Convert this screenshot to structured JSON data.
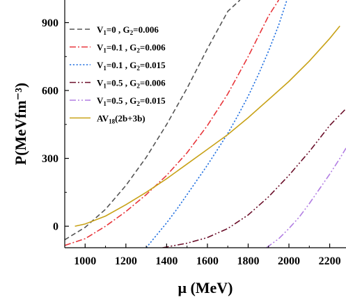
{
  "chart_data": {
    "type": "line",
    "xlabel": "μ (MeV)",
    "ylabel": "P(MeVfm⁻³)",
    "xlim": [
      900,
      2280
    ],
    "ylim": [
      -95,
      1000
    ],
    "xticks": [
      1000,
      1200,
      1400,
      1600,
      1800,
      2000,
      2200
    ],
    "yticks": [
      0,
      300,
      600,
      900
    ],
    "grid": false,
    "legend_position": "top-left",
    "series": [
      {
        "name": "V1=0 , G2=0.006",
        "legend": {
          "base": "V",
          "sub1": "1",
          "mid": "=0 , G",
          "sub2": "2",
          "tail": "=0.006"
        },
        "color": "#555555",
        "dash": "dashed",
        "x": [
          900,
          1000,
          1100,
          1200,
          1300,
          1400,
          1500,
          1600,
          1700,
          1760
        ],
        "y": [
          -60,
          -5,
          75,
          180,
          305,
          450,
          610,
          785,
          950,
          1000
        ]
      },
      {
        "name": "V1=0.1 , G2=0.006",
        "legend": {
          "base": "V",
          "sub1": "1",
          "mid": "=0.1 , G",
          "sub2": "2",
          "tail": "=0.006"
        },
        "color": "#e8353a",
        "dash": "dash-dot",
        "x": [
          900,
          1000,
          1100,
          1200,
          1300,
          1400,
          1500,
          1600,
          1700,
          1800,
          1900,
          1950
        ],
        "y": [
          -85,
          -55,
          0,
          65,
          140,
          225,
          325,
          445,
          585,
          750,
          930,
          1000
        ]
      },
      {
        "name": "V1=0.1 , G2=0.015",
        "legend": {
          "base": "V",
          "sub1": "1",
          "mid": "=0.1 , G",
          "sub2": "2",
          "tail": "=0.015"
        },
        "color": "#1f6fe0",
        "dash": "dotted",
        "x": [
          1300,
          1350,
          1400,
          1450,
          1500,
          1550,
          1600,
          1650,
          1700,
          1750,
          1800,
          1850,
          1900,
          1950,
          1990
        ],
        "y": [
          -95,
          -40,
          15,
          75,
          140,
          205,
          270,
          340,
          410,
          490,
          575,
          670,
          775,
          890,
          1000
        ]
      },
      {
        "name": "V1=0.5 , G2=0.006",
        "legend": {
          "base": "V",
          "sub1": "1",
          "mid": "=0.5 , G",
          "sub2": "2",
          "tail": "=0.006"
        },
        "color": "#6b0f2a",
        "dash": "dash-dot-dot",
        "x": [
          1380,
          1500,
          1600,
          1700,
          1800,
          1900,
          2000,
          2100,
          2200,
          2280
        ],
        "y": [
          -95,
          -75,
          -50,
          -10,
          50,
          130,
          225,
          330,
          445,
          520
        ]
      },
      {
        "name": "V1=0.5 , G2=0.015",
        "legend": {
          "base": "V",
          "sub1": "1",
          "mid": "=0.5 , G",
          "sub2": "2",
          "tail": "=0.015"
        },
        "color": "#b27ee3",
        "dash": "dash-dot-dot",
        "x": [
          1890,
          1950,
          2000,
          2050,
          2100,
          2150,
          2200,
          2250,
          2280
        ],
        "y": [
          -95,
          -55,
          -10,
          40,
          100,
          165,
          230,
          300,
          345
        ]
      },
      {
        "name": "AV18(2b+3b)",
        "legend": {
          "base": "AV",
          "sub1": "18",
          "mid": "(2b+3b)",
          "sub2": "",
          "tail": ""
        },
        "color": "#c8a217",
        "dash": "solid",
        "x": [
          950,
          1000,
          1100,
          1200,
          1300,
          1400,
          1500,
          1600,
          1700,
          1800,
          1900,
          2000,
          2100,
          2200,
          2250
        ],
        "y": [
          0,
          10,
          45,
          95,
          150,
          210,
          275,
          340,
          405,
          480,
          560,
          640,
          730,
          830,
          885
        ]
      }
    ]
  }
}
